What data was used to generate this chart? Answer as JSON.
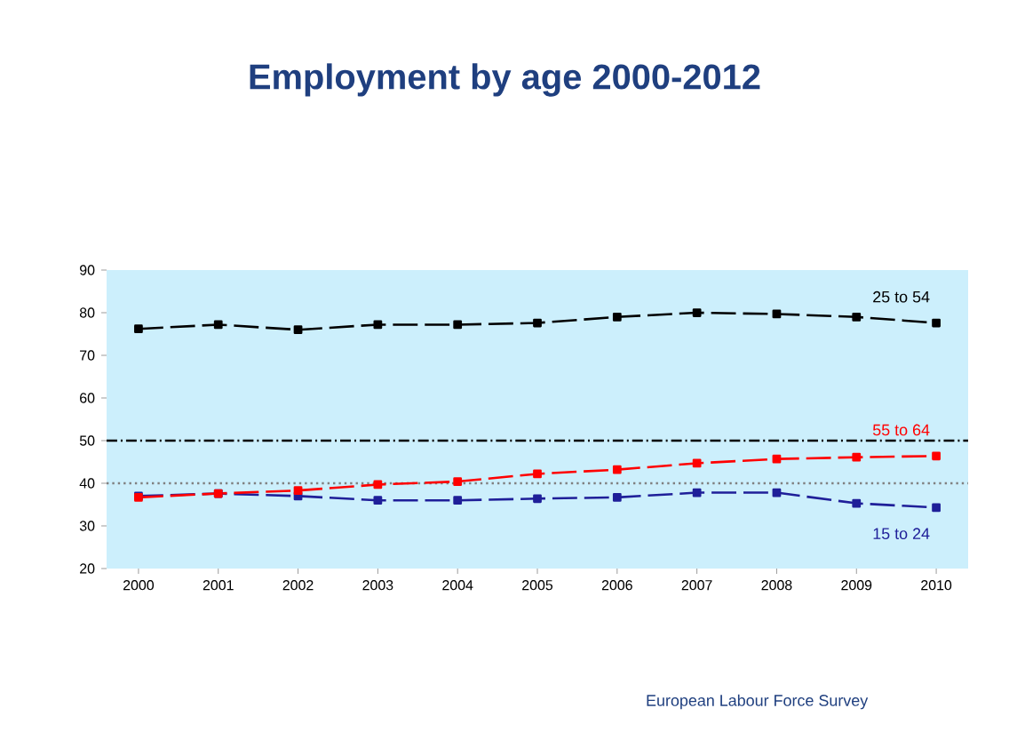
{
  "chart_data": {
    "type": "line",
    "title": "Employment by age 2000-2012",
    "categories": [
      "2000",
      "2001",
      "2002",
      "2003",
      "2004",
      "2005",
      "2006",
      "2007",
      "2008",
      "2009",
      "2010"
    ],
    "series": [
      {
        "name": "25 to 54",
        "color": "#000000",
        "values": [
          76.2,
          77.2,
          76.0,
          77.2,
          77.2,
          77.6,
          79.0,
          80.0,
          79.7,
          79.0,
          77.6
        ]
      },
      {
        "name": "55 to 64",
        "color": "#ff0000",
        "values": [
          36.7,
          37.6,
          38.3,
          39.7,
          40.4,
          42.2,
          43.2,
          44.7,
          45.7,
          46.1,
          46.4
        ]
      },
      {
        "name": "15 to 24",
        "color": "#1f1f99",
        "values": [
          37.0,
          37.6,
          37.0,
          36.0,
          36.0,
          36.4,
          36.7,
          37.8,
          37.8,
          35.3,
          34.3
        ]
      }
    ],
    "ylim": [
      20,
      90
    ],
    "yticks": [
      20,
      30,
      40,
      50,
      60,
      70,
      80,
      90
    ],
    "ref_lines": [
      {
        "axis": "y",
        "value": 50,
        "color": "#000000",
        "line_style": "dashed"
      },
      {
        "axis": "y",
        "value": 40,
        "color": "#808080",
        "line_style": "dotted"
      }
    ],
    "marker": "square",
    "line_style": "dashed",
    "grid": false,
    "legend": false,
    "annotations": [
      "European Labour Force Survey"
    ]
  }
}
